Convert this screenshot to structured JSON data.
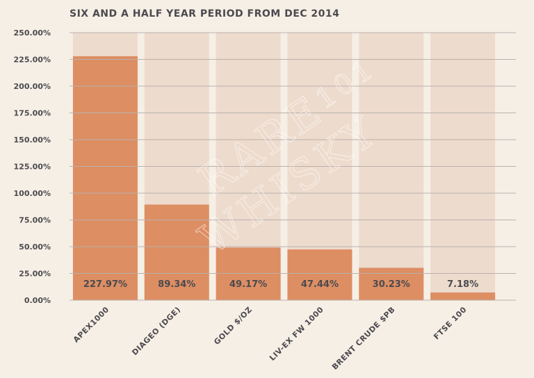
{
  "chart_data": {
    "type": "bar",
    "title": "SIX AND A HALF YEAR PERIOD FROM DEC 2014",
    "categories": [
      "APEX1000",
      "DIAGEO (DGE)",
      "GOLD $/OZ",
      "LIV-EX FW 1000",
      "BRENT CRUDE $PB",
      "FTSE 100"
    ],
    "values": [
      227.97,
      89.34,
      49.17,
      47.44,
      30.23,
      7.18
    ],
    "data_labels": [
      "227.97%",
      "89.34%",
      "49.17%",
      "47.44%",
      "30.23%",
      "7.18%"
    ],
    "yticks": [
      "0.00%",
      "25.00%",
      "50.00%",
      "75.00%",
      "100.00%",
      "125.00%",
      "150.00%",
      "175.00%",
      "200.00%",
      "225.00%",
      "250.00%"
    ],
    "ylim": [
      0,
      250
    ],
    "grid": true,
    "xlabel": "",
    "ylabel": ""
  },
  "watermark": {
    "line1": "RARE",
    "line2": "WHISKY",
    "line3": "101"
  },
  "colors": {
    "background": "#f6efe6",
    "column_bg": "#eddbcd",
    "bar": "#dd8e63",
    "grid": "#b9b1ad",
    "text": "#4b4a4e"
  }
}
